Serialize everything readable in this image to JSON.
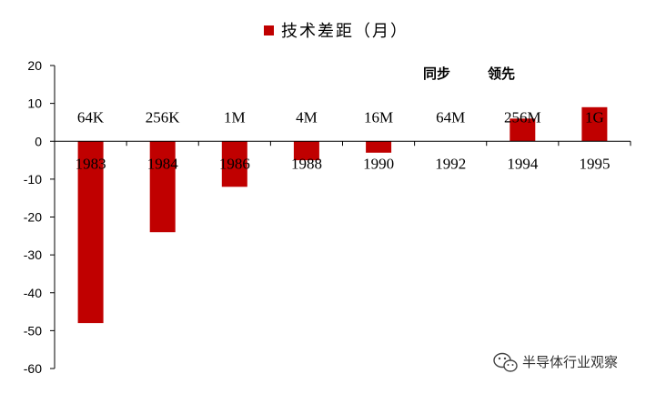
{
  "chart_data": {
    "type": "bar",
    "categories": [
      "1983",
      "1984",
      "1986",
      "1988",
      "1990",
      "1992",
      "1994",
      "1995"
    ],
    "technology_labels": [
      "64K",
      "256K",
      "1M",
      "4M",
      "16M",
      "64M",
      "256M",
      "1G"
    ],
    "series": [
      {
        "name": "技术差距（月）",
        "values": [
          -48,
          -24,
          -12,
          -5,
          -3,
          0,
          6,
          9
        ],
        "color": "#c00000"
      }
    ],
    "ylim": [
      -60,
      20
    ],
    "yticks": [
      -60,
      -50,
      -40,
      -30,
      -20,
      -10,
      0,
      10,
      20
    ],
    "annotations": [
      "同步",
      "领先"
    ],
    "grid": false,
    "legend_position": "top"
  },
  "watermark": {
    "text": "半导体行业观察",
    "icon": "wechat-logo-icon"
  }
}
